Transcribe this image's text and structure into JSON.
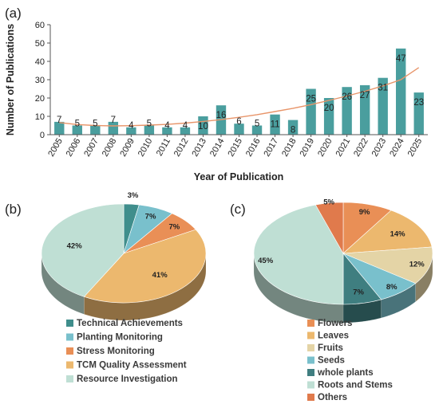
{
  "chart_data": [
    {
      "panel": "(a)",
      "type": "bar",
      "xlabel": "Year of Publication",
      "ylabel": "Number of Publications",
      "ylim": [
        0,
        60
      ],
      "yticks": [
        0,
        10,
        20,
        30,
        40,
        50,
        60
      ],
      "categories": [
        "2005",
        "2006",
        "2007",
        "2008",
        "2009",
        "2010",
        "2011",
        "2012",
        "2013",
        "2014",
        "2015",
        "2016",
        "2017",
        "2018",
        "2019",
        "2020",
        "2021",
        "2022",
        "2023",
        "2024",
        "2025"
      ],
      "values": [
        7,
        5,
        5,
        7,
        4,
        5,
        4,
        4,
        10,
        16,
        6,
        5,
        11,
        8,
        25,
        20,
        26,
        27,
        31,
        47,
        23
      ],
      "bar_labels": [
        "7",
        "5",
        "5",
        "7",
        "4",
        "5",
        "4",
        "4",
        "10",
        "16",
        "6",
        "5",
        "11",
        "8",
        "25",
        "20",
        "26",
        "27",
        "31",
        "47",
        "23"
      ],
      "trendline": {
        "type": "polynomial",
        "values": [
          6.6,
          5.5,
          5.0,
          4.8,
          4.9,
          5.2,
          5.6,
          6.3,
          7.2,
          8.2,
          9.5,
          10.9,
          12.6,
          14.4,
          16.4,
          18.7,
          21.1,
          23.7,
          26.6,
          30.0,
          36.6
        ]
      },
      "colors": {
        "bar": "#4a9e9e",
        "trend": "#e8956a"
      }
    },
    {
      "panel": "(b)",
      "type": "pie",
      "labels": [
        "Technical Achievements",
        "Planting Monitoring",
        "Stress Monitoring",
        "TCM Quality Assessment",
        "Resource Investigation"
      ],
      "values": [
        3,
        7,
        7,
        41,
        42
      ],
      "value_labels": [
        "3%",
        "7%",
        "7%",
        "41%",
        "42%"
      ],
      "colors": [
        "#3f8e8c",
        "#79c0cc",
        "#e98f56",
        "#ecb86e",
        "#bfdfd4"
      ],
      "legend_position": "bottom"
    },
    {
      "panel": "(c)",
      "type": "pie",
      "labels": [
        "Flowers",
        "Leaves",
        "Fruits",
        "Seeds",
        "whole plants",
        "Roots and Stems",
        "Others"
      ],
      "values": [
        9,
        14,
        12,
        8,
        7,
        45,
        5
      ],
      "value_labels": [
        "9%",
        "14%",
        "12%",
        "8%",
        "7%",
        "45%",
        "5%"
      ],
      "colors": [
        "#e98f56",
        "#ecb86e",
        "#e4d4a6",
        "#79c0cc",
        "#3f7e80",
        "#bfdfd4",
        "#e07a4c"
      ],
      "legend_position": "bottom"
    }
  ]
}
